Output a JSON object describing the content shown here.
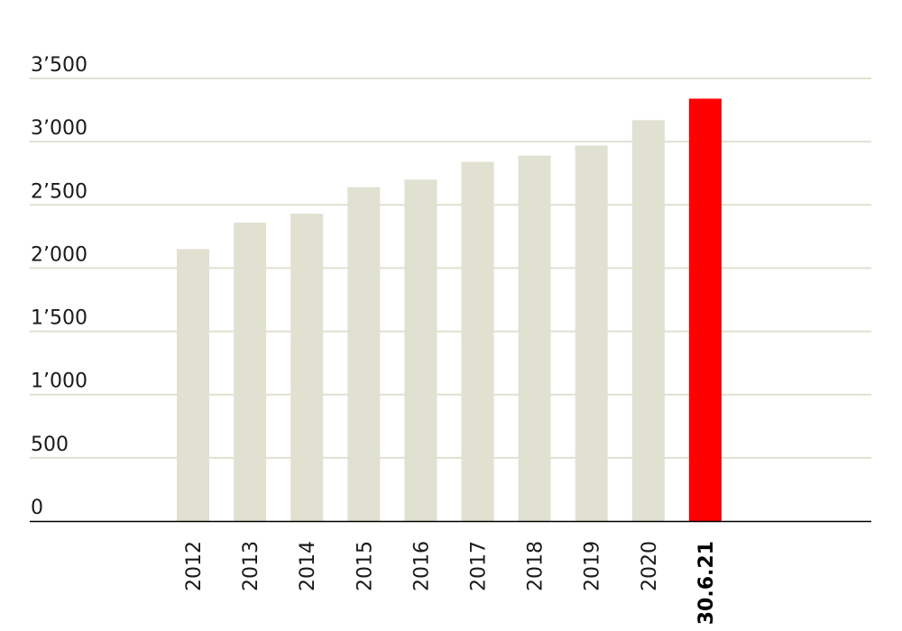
{
  "chart_data": {
    "type": "bar",
    "title": "",
    "xlabel": "",
    "ylabel": "",
    "ylim": [
      0,
      3500
    ],
    "yticks": [
      {
        "value": 0,
        "label": "0"
      },
      {
        "value": 500,
        "label": "500"
      },
      {
        "value": 1000,
        "label": "1’000"
      },
      {
        "value": 1500,
        "label": "1’500"
      },
      {
        "value": 2000,
        "label": "2’000"
      },
      {
        "value": 2500,
        "label": "2’500"
      },
      {
        "value": 3000,
        "label": "3’000"
      },
      {
        "value": 3500,
        "label": "3’500"
      }
    ],
    "categories": [
      "2012",
      "2013",
      "2014",
      "2015",
      "2016",
      "2017",
      "2018",
      "2019",
      "2020",
      "30.6.21"
    ],
    "values": [
      2150,
      2360,
      2430,
      2640,
      2700,
      2840,
      2890,
      2970,
      3170,
      3340
    ],
    "highlight_index": 9,
    "grid": true,
    "legend": "none",
    "colors": {
      "bar": "#e0e1d0",
      "highlight": "#ff0000",
      "grid": "#e0e1d0",
      "baseline": "#000000"
    }
  }
}
